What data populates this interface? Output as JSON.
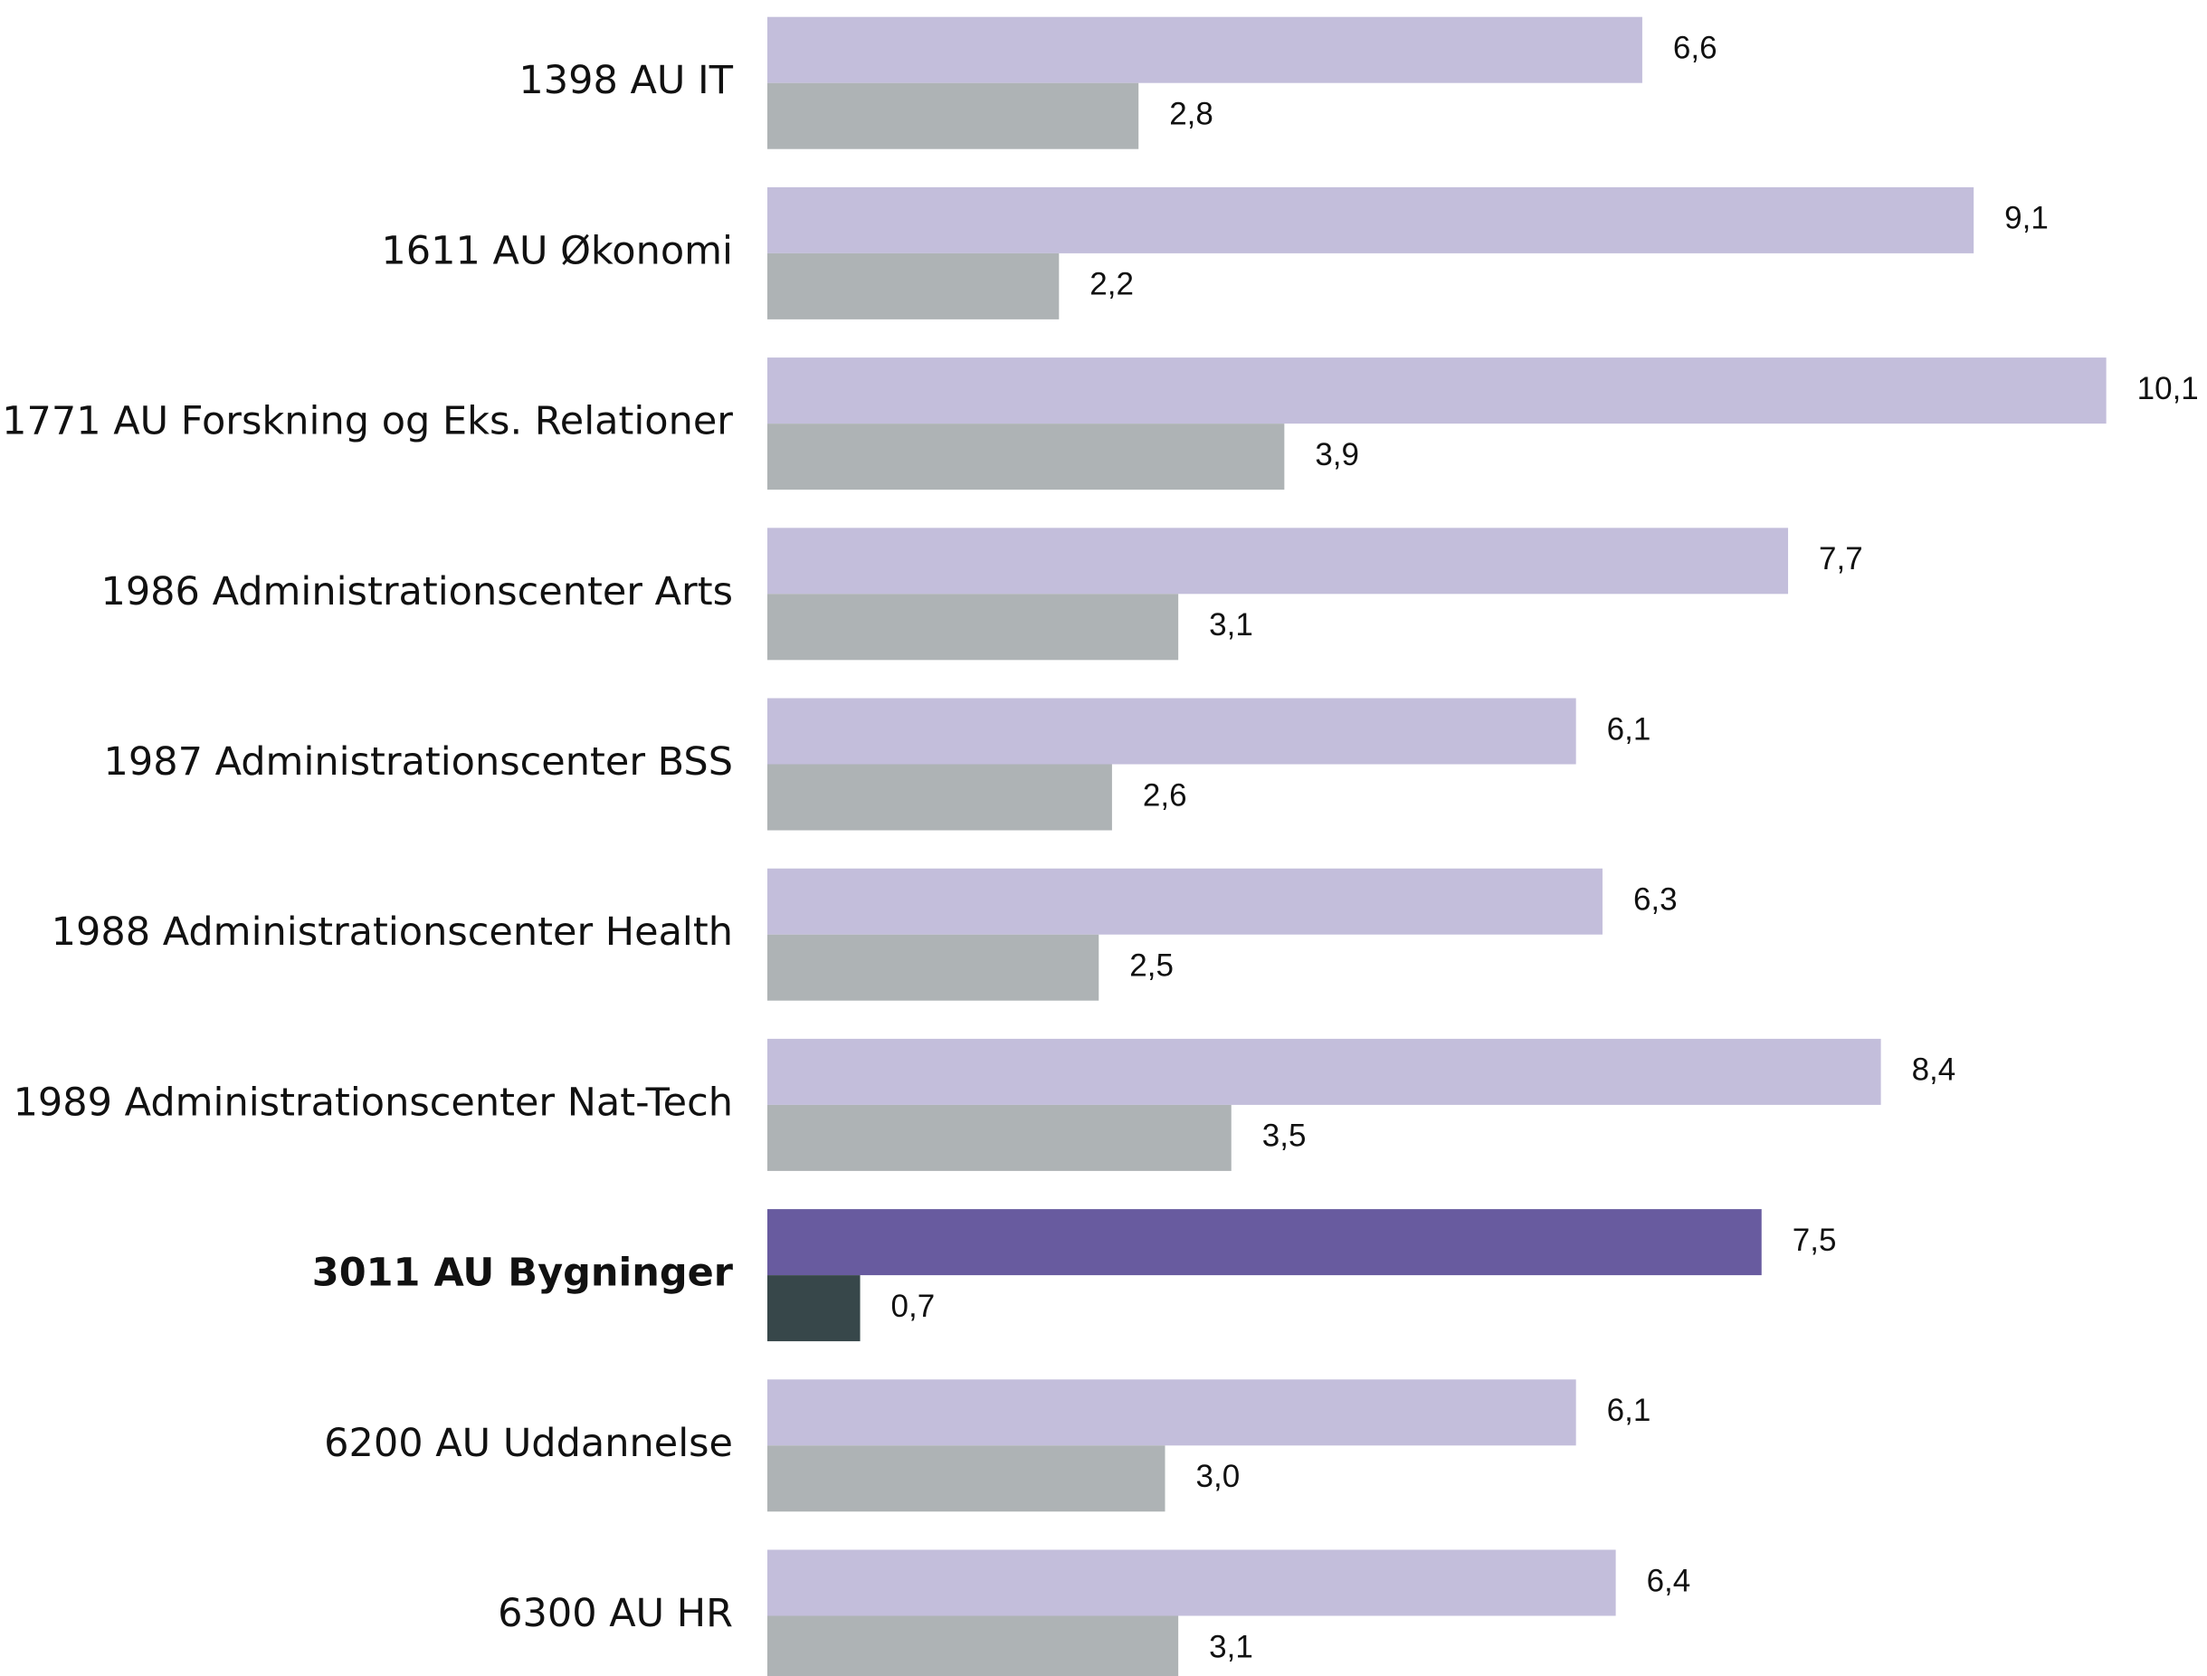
{
  "chart_data": {
    "type": "bar",
    "orientation": "horizontal",
    "categories": [
      "1398 AU IT",
      "1611 AU Økonomi",
      "1771 AU Forskning og Eks. Relationer",
      "1986 Administrationscenter Arts",
      "1987 Administrationscenter BSS",
      "1988 Administrationscenter Health",
      "1989 Administrationscenter Nat-Tech",
      "3011 AU Bygninger",
      "6200 AU Uddannelse",
      "6300 AU HR"
    ],
    "series": [
      {
        "color": "#c3bedb",
        "highlight_color": "#685b9f",
        "values": [
          6.6,
          9.1,
          10.1,
          7.7,
          6.1,
          6.3,
          8.4,
          7.5,
          6.1,
          6.4
        ],
        "value_labels": [
          "6,6",
          "9,1",
          "10,1",
          "7,7",
          "6,1",
          "6,3",
          "8,4",
          "7,5",
          "6,1",
          "6,4"
        ]
      },
      {
        "color": "#aeb3b5",
        "highlight_color": "#37474a",
        "values": [
          2.8,
          2.2,
          3.9,
          3.1,
          2.6,
          2.5,
          3.5,
          0.7,
          3.0,
          3.1
        ],
        "value_labels": [
          "2,8",
          "2,2",
          "3,9",
          "3,1",
          "2,6",
          "2,5",
          "3,5",
          "0,7",
          "3,0",
          "3,1"
        ]
      }
    ],
    "highlight_index": 7
  }
}
